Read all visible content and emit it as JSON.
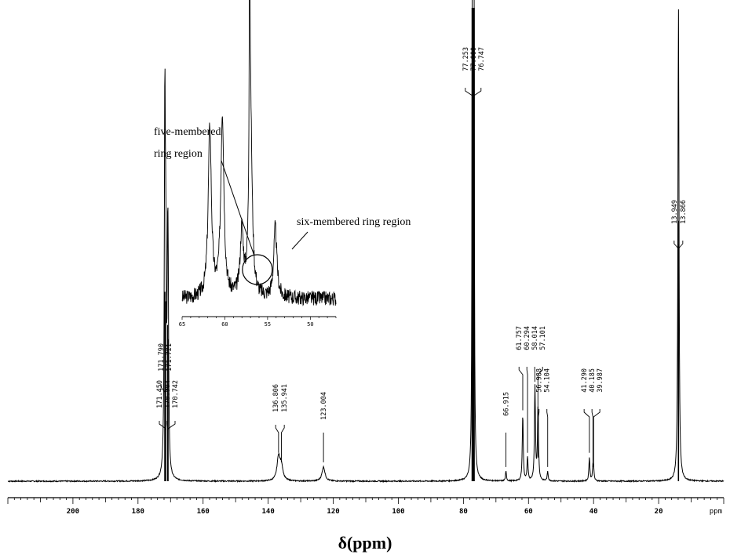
{
  "chart_data": {
    "type": "line",
    "title": "",
    "xlabel": "δ(ppm)",
    "x_unit_label": "ppm",
    "xlim": [
      220,
      0
    ],
    "x_reversed": true,
    "x_ticks": [
      200,
      180,
      160,
      140,
      120,
      100,
      80,
      60,
      40,
      20
    ],
    "series": [
      {
        "peaks": [
          {
            "label": "171.790",
            "x": 171.79,
            "y": 0.4
          },
          {
            "label": "171.721",
            "x": 171.72,
            "y": 0.4
          },
          {
            "label": "171.450",
            "x": 171.45,
            "y": 0.38
          },
          {
            "label": "170.904",
            "x": 170.9,
            "y": 0.33
          },
          {
            "label": "170.742",
            "x": 170.74,
            "y": 0.3
          },
          {
            "label": "136.806",
            "x": 136.81,
            "y": 0.05
          },
          {
            "label": "135.941",
            "x": 135.94,
            "y": 0.03
          },
          {
            "label": "123.004",
            "x": 123.0,
            "y": 0.03
          },
          {
            "label": "77.253",
            "x": 77.25,
            "y": 1.0
          },
          {
            "label": "77.000",
            "x": 77.0,
            "y": 1.0
          },
          {
            "label": "76.747",
            "x": 76.75,
            "y": 1.0
          },
          {
            "label": "66.915",
            "x": 66.92,
            "y": 0.02
          },
          {
            "label": "61.757",
            "x": 61.76,
            "y": 0.14
          },
          {
            "label": "60.294",
            "x": 60.29,
            "y": 0.05
          },
          {
            "label": "58.014",
            "x": 58.01,
            "y": 0.2
          },
          {
            "label": "57.101",
            "x": 57.1,
            "y": 0.12
          },
          {
            "label": "56.988",
            "x": 56.99,
            "y": 0.04
          },
          {
            "label": "54.104",
            "x": 54.1,
            "y": 0.02
          },
          {
            "label": "41.290",
            "x": 41.29,
            "y": 0.05
          },
          {
            "label": "40.185",
            "x": 40.19,
            "y": 0.03
          },
          {
            "label": "39.987",
            "x": 39.99,
            "y": 0.02
          },
          {
            "label": "13.949",
            "x": 13.95,
            "y": 0.55
          },
          {
            "label": "13.866",
            "x": 13.87,
            "y": 0.5
          }
        ]
      }
    ],
    "inset": {
      "xlim": [
        65,
        47
      ],
      "x_ticks": [
        65,
        60,
        55,
        50
      ],
      "x_reversed": true,
      "peaks": [
        {
          "x": 61.76,
          "y": 0.58
        },
        {
          "x": 60.29,
          "y": 0.62
        },
        {
          "x": 58.01,
          "y": 0.22
        },
        {
          "x": 57.1,
          "y": 1.0
        },
        {
          "x": 56.99,
          "y": 0.6
        },
        {
          "x": 54.1,
          "y": 0.24
        }
      ],
      "annotations": [
        {
          "text_lines": [
            "five-membered",
            "ring region"
          ],
          "target_ppm": 56.2
        },
        {
          "text_lines": [
            "six-membered ring region"
          ],
          "target_ppm": 54.1
        }
      ]
    }
  }
}
